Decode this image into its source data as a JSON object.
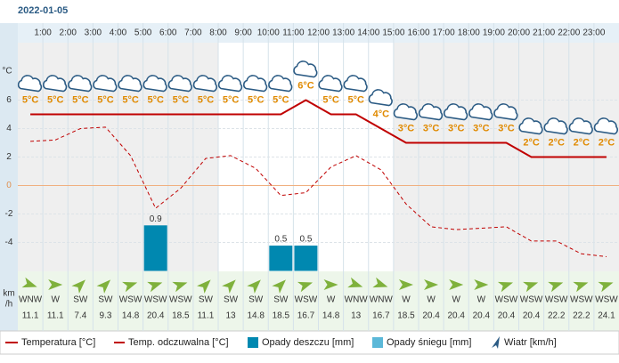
{
  "chart_data": {
    "type": "line",
    "title": "2022-01-05",
    "hour_labels": [
      "1:00",
      "2:00",
      "3:00",
      "4:00",
      "5:00",
      "6:00",
      "7:00",
      "8:00",
      "9:00",
      "10:00",
      "11:00",
      "12:00",
      "13:00",
      "14:00",
      "15:00",
      "16:00",
      "17:00",
      "18:00",
      "19:00",
      "20:00",
      "21:00",
      "22:00",
      "23:00"
    ],
    "y_label": "°C",
    "ylim": [
      -6,
      10
    ],
    "yticks": [
      -4,
      -2,
      0,
      2,
      4,
      6
    ],
    "y2lim": [
      0,
      4.5
    ],
    "series": [
      {
        "name": "Temperatura [°C]",
        "color": "#c00000",
        "values": [
          5,
          5,
          5,
          5,
          5,
          5,
          5,
          5,
          5,
          5,
          5,
          6,
          5,
          5,
          4,
          3,
          3,
          3,
          3,
          3,
          2,
          2,
          2,
          2
        ],
        "value_labels": [
          "5°C",
          "5°C",
          "5°C",
          "5°C",
          "5°C",
          "5°C",
          "5°C",
          "5°C",
          "5°C",
          "5°C",
          "5°C",
          "6°C",
          "5°C",
          "5°C",
          "4°C",
          "3°C",
          "3°C",
          "3°C",
          "3°C",
          "3°C",
          "2°C",
          "2°C",
          "2°C",
          "2°C"
        ]
      },
      {
        "name": "Temp. odczuwalna [°C]",
        "color": "#c00000",
        "values": [
          3.1,
          3.2,
          4.0,
          4.1,
          2.1,
          -1.6,
          -0.2,
          1.9,
          2.1,
          1.2,
          -0.7,
          -0.5,
          1.3,
          2.1,
          1.1,
          -1.3,
          -2.9,
          -3.1,
          -3.0,
          -2.9,
          -3.9,
          -3.9,
          -4.8,
          -5.0
        ]
      },
      {
        "name": "Opady deszczu [mm]",
        "color": "#0088b0",
        "axis": "y2",
        "values": [
          0,
          0,
          0,
          0,
          0,
          0.9,
          0,
          0,
          0,
          0,
          0.5,
          0.5,
          0,
          0,
          0,
          0,
          0,
          0,
          0,
          0,
          0,
          0,
          0,
          0
        ]
      },
      {
        "name": "Opady śniegu [mm]",
        "color": "#5bb8d8",
        "axis": "y2"
      }
    ],
    "wind": {
      "name": "Wiatr [km/h]",
      "unit_label": [
        "km",
        "/h"
      ],
      "directions": [
        "WNW",
        "W",
        "SW",
        "SW",
        "WSW",
        "WSW",
        "WSW",
        "SW",
        "SW",
        "SW",
        "SW",
        "WSW",
        "W",
        "WNW",
        "WNW",
        "W",
        "W",
        "W",
        "W",
        "WSW",
        "WSW",
        "WSW",
        "WSW",
        "WSW"
      ],
      "speeds": [
        11.1,
        11.1,
        7.4,
        9.3,
        14.8,
        20.4,
        18.5,
        11.1,
        13,
        14.8,
        18.5,
        16.7,
        14.8,
        13,
        16.7,
        18.5,
        20.4,
        20.4,
        20.4,
        20.4,
        20.4,
        22.2,
        22.2,
        24.1
      ]
    }
  }
}
